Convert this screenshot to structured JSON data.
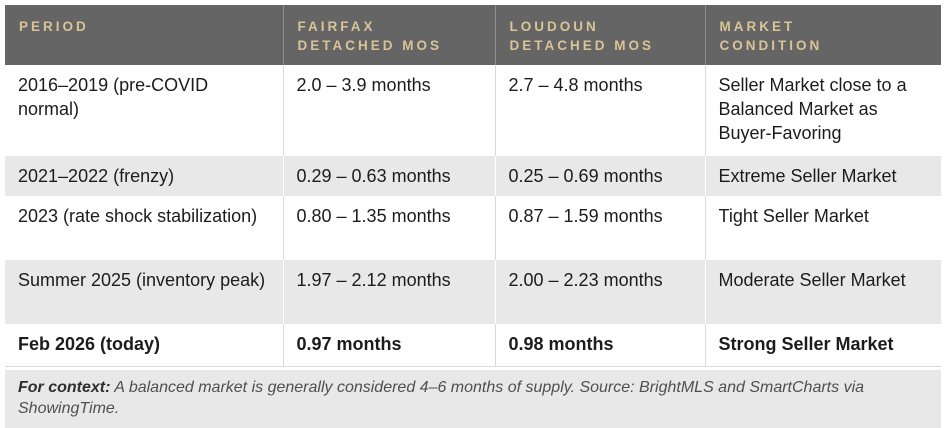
{
  "table": {
    "columns": [
      {
        "line1": "PERIOD",
        "line2": ""
      },
      {
        "line1": "FAIRFAX",
        "line2": "DETACHED MOS"
      },
      {
        "line1": "LOUDOUN",
        "line2": "DETACHED MOS"
      },
      {
        "line1": "MARKET",
        "line2": "CONDITION"
      }
    ],
    "rows": [
      {
        "period": "2016–2019 (pre-COVID normal)",
        "fairfax": "2.0 – 3.9 months",
        "loudoun": "2.7 – 4.8 months",
        "condition": "Seller Market close to a Balanced Market as Buyer-Favoring"
      },
      {
        "period": "2021–2022 (frenzy)",
        "fairfax": "0.29 – 0.63 months",
        "loudoun": "0.25 – 0.69 months",
        "condition": "Extreme Seller Market"
      },
      {
        "period": "2023 (rate shock stabilization)",
        "fairfax": "0.80 – 1.35 months",
        "loudoun": "0.87 – 1.59 months",
        "condition": "Tight Seller Market"
      },
      {
        "period": "Summer 2025 (inventory peak)",
        "fairfax": "1.97 – 2.12 months",
        "loudoun": "2.00 – 2.23 months",
        "condition": "Moderate Seller Market"
      },
      {
        "period": "Feb 2026 (today)",
        "fairfax": "0.97 months",
        "loudoun": "0.98 months",
        "condition": "Strong Seller Market"
      }
    ]
  },
  "footer": {
    "label": "For context:",
    "text": " A balanced market is generally considered 4–6 months of supply. Source: BrightMLS and SmartCharts via ShowingTime."
  },
  "colors": {
    "header_bg": "#656565",
    "header_text": "#d9c496",
    "stripe_bg": "#e8e8e8",
    "body_text": "#1c1c1c",
    "border": "#d9d9d9"
  }
}
